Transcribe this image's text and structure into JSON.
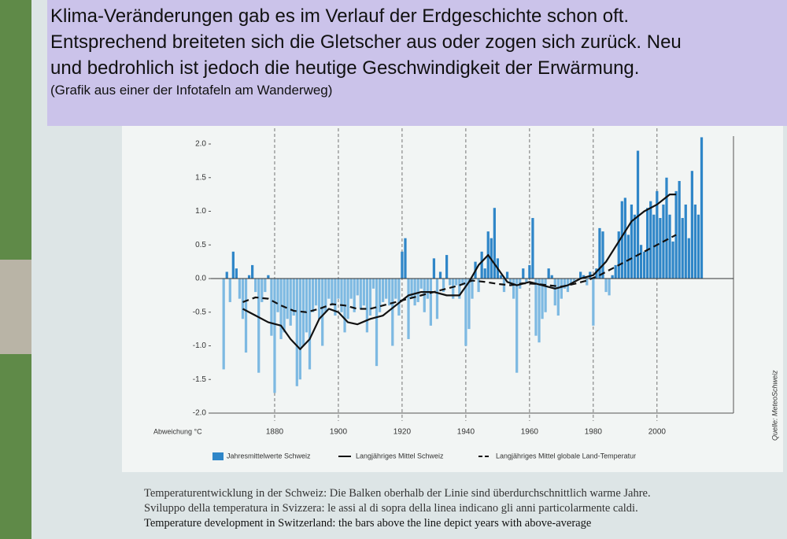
{
  "overlay": {
    "lines": [
      "Klima-Veränderungen gab es im Verlauf der Erdgeschichte schon oft.",
      "Entsprechend breiteten sich die Gletscher aus oder zogen sich zurück. Neu",
      "und bedrohlich ist jedoch die heutige Geschwindigkeit der Erwärmung."
    ],
    "note": "(Grafik aus einer der Infotafeln am Wanderweg)"
  },
  "board_caption": [
    "Temperaturentwicklung in der Schweiz: Die Balken oberhalb der Linie sind überdurchschnittlich warme Jahre.",
    "Sviluppo della temperatura in Svizzera: le assi al di sopra della linea indicano gli anni particolarmente caldi.",
    "Temperature development in Switzerland: the bars above the line depict years with above-average"
  ],
  "chart_data": {
    "type": "bar",
    "y_label": "Abweichung °C",
    "source": "Quelle: MeteoSchweiz",
    "bar_name": "Jahresmittelwerte Schweiz",
    "positive_color": "#2f86c8",
    "negative_color": "#7db9e2",
    "xlim": [
      1860,
      2024
    ],
    "xticks": [
      1880,
      1900,
      1920,
      1940,
      1960,
      1980,
      2000
    ],
    "ylim": [
      -2,
      2
    ],
    "yticks": [
      {
        "value": 2,
        "label": "2.0"
      },
      {
        "value": 1.5,
        "label": "1.5"
      },
      {
        "value": 1,
        "label": "1.0"
      },
      {
        "value": 0.5,
        "label": "0.5"
      },
      {
        "value": 0,
        "label": "0.0"
      },
      {
        "value": -0.5,
        "label": "-0.5"
      },
      {
        "value": -1,
        "label": "-1.0"
      },
      {
        "value": -1.5,
        "label": "-1.5"
      },
      {
        "value": -2,
        "label": "-2.0"
      }
    ],
    "vertical_grid": true,
    "x": [
      1864,
      1865,
      1866,
      1867,
      1868,
      1869,
      1870,
      1871,
      1872,
      1873,
      1874,
      1875,
      1876,
      1877,
      1878,
      1879,
      1880,
      1881,
      1882,
      1883,
      1884,
      1885,
      1886,
      1887,
      1888,
      1889,
      1890,
      1891,
      1892,
      1893,
      1894,
      1895,
      1896,
      1897,
      1898,
      1899,
      1900,
      1901,
      1902,
      1903,
      1904,
      1905,
      1906,
      1907,
      1908,
      1909,
      1910,
      1911,
      1912,
      1913,
      1914,
      1915,
      1916,
      1917,
      1918,
      1919,
      1920,
      1921,
      1922,
      1923,
      1924,
      1925,
      1926,
      1927,
      1928,
      1929,
      1930,
      1931,
      1932,
      1933,
      1934,
      1935,
      1936,
      1937,
      1938,
      1939,
      1940,
      1941,
      1942,
      1943,
      1944,
      1945,
      1946,
      1947,
      1948,
      1949,
      1950,
      1951,
      1952,
      1953,
      1954,
      1955,
      1956,
      1957,
      1958,
      1959,
      1960,
      1961,
      1962,
      1963,
      1964,
      1965,
      1966,
      1967,
      1968,
      1969,
      1970,
      1971,
      1972,
      1973,
      1974,
      1975,
      1976,
      1977,
      1978,
      1979,
      1980,
      1981,
      1982,
      1983,
      1984,
      1985,
      1986,
      1987,
      1988,
      1989,
      1990,
      1991,
      1992,
      1993,
      1994,
      1995,
      1996,
      1997,
      1998,
      1999,
      2000,
      2001,
      2002,
      2003,
      2004,
      2005,
      2006,
      2007,
      2008,
      2009,
      2010,
      2011,
      2012,
      2013,
      2014
    ],
    "values": [
      -1.35,
      0.1,
      -0.35,
      0.4,
      0.15,
      -0.3,
      -0.6,
      -1.1,
      0.05,
      0.2,
      -0.2,
      -1.4,
      -0.35,
      -0.2,
      0.05,
      -0.85,
      -1.7,
      -0.5,
      -0.9,
      -0.8,
      -0.6,
      -0.7,
      -0.55,
      -1.6,
      -1.5,
      -1.0,
      -0.8,
      -1.35,
      -0.5,
      -0.4,
      -0.6,
      -1.0,
      -0.5,
      -0.3,
      -0.4,
      -0.55,
      -0.3,
      -0.5,
      -0.8,
      -0.6,
      -0.3,
      -0.5,
      -0.25,
      -0.45,
      -0.4,
      -0.8,
      -0.55,
      -0.15,
      -1.3,
      -0.5,
      -0.35,
      -0.3,
      -0.4,
      -1.0,
      -0.3,
      -0.55,
      0.4,
      0.6,
      -0.9,
      -0.3,
      -0.4,
      -0.35,
      -0.15,
      -0.5,
      -0.3,
      -0.7,
      0.3,
      -0.6,
      0.1,
      -0.2,
      0.35,
      -0.1,
      -0.3,
      -0.1,
      -0.3,
      -0.1,
      -1.0,
      -0.75,
      -0.3,
      0.25,
      -0.2,
      0.4,
      0.15,
      0.7,
      0.6,
      1.05,
      0.3,
      0.05,
      -0.2,
      0.1,
      -0.1,
      -0.3,
      -1.4,
      -0.15,
      0.15,
      -0.05,
      0.2,
      0.9,
      -0.85,
      -0.95,
      -0.6,
      -0.5,
      0.15,
      0.05,
      -0.4,
      -0.55,
      -0.3,
      -0.15,
      -0.2,
      -0.1,
      -0.05,
      0.0,
      0.1,
      0.05,
      -0.1,
      0.1,
      -0.7,
      0.15,
      0.75,
      0.7,
      -0.2,
      -0.25,
      0.05,
      0.2,
      0.7,
      1.15,
      1.2,
      0.65,
      1.1,
      0.95,
      1.9,
      0.5,
      0.4,
      1.05,
      1.15,
      0.95,
      1.3,
      0.9,
      1.1,
      1.5,
      0.95,
      0.55,
      1.3,
      1.45,
      0.9,
      1.1,
      0.6,
      1.6,
      1.1,
      0.95,
      2.1
    ],
    "series": [
      {
        "name": "Langjähriges Mittel Schweiz",
        "type": "line",
        "color": "#111111",
        "dashed": false,
        "x": [
          1870,
          1874,
          1878,
          1882,
          1885,
          1888,
          1891,
          1894,
          1897,
          1900,
          1903,
          1906,
          1910,
          1914,
          1918,
          1922,
          1926,
          1930,
          1934,
          1938,
          1941,
          1944,
          1947,
          1950,
          1953,
          1956,
          1960,
          1964,
          1968,
          1972,
          1976,
          1980,
          1984,
          1988,
          1992,
          1996,
          2000,
          2004,
          2006
        ],
        "values": [
          -0.45,
          -0.55,
          -0.65,
          -0.7,
          -0.9,
          -1.05,
          -0.9,
          -0.6,
          -0.45,
          -0.5,
          -0.65,
          -0.68,
          -0.6,
          -0.55,
          -0.4,
          -0.25,
          -0.2,
          -0.2,
          -0.25,
          -0.25,
          -0.05,
          0.2,
          0.35,
          0.15,
          -0.05,
          -0.1,
          -0.05,
          -0.1,
          -0.15,
          -0.1,
          0.0,
          0.05,
          0.25,
          0.55,
          0.85,
          1.0,
          1.1,
          1.25,
          1.25
        ]
      },
      {
        "name": "Langjähriges Mittel globale Land-Temperatur",
        "type": "line",
        "color": "#111111",
        "dashed": true,
        "x": [
          1870,
          1874,
          1878,
          1882,
          1886,
          1890,
          1894,
          1898,
          1902,
          1906,
          1910,
          1914,
          1918,
          1922,
          1926,
          1930,
          1934,
          1938,
          1942,
          1946,
          1950,
          1954,
          1958,
          1962,
          1966,
          1970,
          1974,
          1978,
          1982,
          1986,
          1990,
          1994,
          1998,
          2002,
          2006
        ],
        "values": [
          -0.35,
          -0.28,
          -0.3,
          -0.4,
          -0.48,
          -0.5,
          -0.45,
          -0.38,
          -0.4,
          -0.45,
          -0.45,
          -0.4,
          -0.35,
          -0.3,
          -0.25,
          -0.2,
          -0.15,
          -0.1,
          -0.03,
          -0.05,
          -0.08,
          -0.1,
          -0.07,
          -0.08,
          -0.1,
          -0.12,
          -0.08,
          -0.03,
          0.05,
          0.15,
          0.25,
          0.35,
          0.45,
          0.55,
          0.65
        ]
      }
    ]
  }
}
